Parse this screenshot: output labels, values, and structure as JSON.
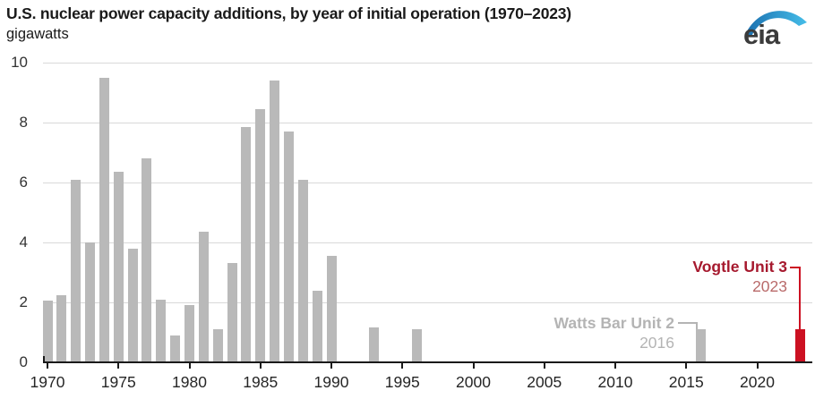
{
  "header": {
    "title": "U.S. nuclear power capacity additions, by year of initial operation (1970–2023)",
    "subtitle": "gigawatts",
    "logo_text": "eia"
  },
  "chart_data": {
    "type": "bar",
    "title": "U.S. nuclear power capacity additions, by year of initial operation (1970–2023)",
    "ylabel": "gigawatts",
    "xlabel": "",
    "ylim": [
      0,
      10
    ],
    "yticks": [
      0,
      2,
      4,
      6,
      8,
      10
    ],
    "xticks": [
      1970,
      1975,
      1980,
      1985,
      1990,
      1995,
      2000,
      2005,
      2010,
      2015,
      2020
    ],
    "grid": "horizontal",
    "legend": "none",
    "x": [
      1970,
      1971,
      1972,
      1973,
      1974,
      1975,
      1976,
      1977,
      1978,
      1979,
      1980,
      1981,
      1982,
      1983,
      1984,
      1985,
      1986,
      1987,
      1988,
      1989,
      1990,
      1991,
      1992,
      1993,
      1994,
      1995,
      1996,
      1997,
      1998,
      1999,
      2000,
      2001,
      2002,
      2003,
      2004,
      2005,
      2006,
      2007,
      2008,
      2009,
      2010,
      2011,
      2012,
      2013,
      2014,
      2015,
      2016,
      2017,
      2018,
      2019,
      2020,
      2021,
      2022,
      2023
    ],
    "values": [
      2.05,
      2.25,
      6.1,
      4.0,
      9.5,
      6.35,
      3.8,
      6.8,
      2.1,
      0.9,
      1.9,
      4.35,
      1.1,
      3.3,
      7.85,
      8.45,
      9.4,
      7.7,
      6.1,
      2.4,
      3.55,
      0,
      0,
      1.15,
      0,
      0,
      1.1,
      0,
      0,
      0,
      0,
      0,
      0,
      0,
      0,
      0,
      0,
      0,
      0,
      0,
      0,
      0,
      0,
      0,
      0,
      0,
      1.1,
      0,
      0,
      0,
      0,
      0,
      0,
      1.1
    ],
    "bar_color": "#b9b9b9",
    "highlight": {
      "year": 2023,
      "color": "#cc1122"
    }
  },
  "annotations": [
    {
      "label": "Watts Bar Unit 2",
      "year": "2016",
      "target_year": 2016,
      "label_color": "#b4b4b4",
      "year_color": "#b4b4b4",
      "line_color": "#b4b4b4",
      "attach": "left"
    },
    {
      "label": "Vogtle Unit 3",
      "year": "2023",
      "target_year": 2023,
      "label_color": "#a6192e",
      "year_color": "#b96a6a",
      "line_color": "#cc1122",
      "attach": "center"
    }
  ],
  "colors": {
    "background": "#ffffff",
    "axis": "#1a1a1a",
    "grid": "#d9d9d9",
    "title": "#1a1a1a",
    "y_tick_label": "#333333",
    "x_tick_label": "#262626",
    "logo_text": "#3b3b3b",
    "logo_swoosh_start": "#1a6faf",
    "logo_swoosh_end": "#45bde8"
  }
}
